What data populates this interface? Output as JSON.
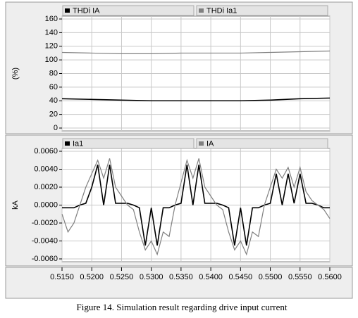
{
  "chart_data": [
    {
      "type": "line",
      "y_label": "(%)",
      "x": [
        0.515,
        0.52,
        0.525,
        0.53,
        0.535,
        0.54,
        0.545,
        0.55,
        0.555,
        0.56
      ],
      "series": [
        {
          "name": "THDi IA",
          "color": "#000000",
          "values": [
            43,
            42,
            41,
            40,
            40,
            40,
            40,
            41,
            43,
            44
          ]
        },
        {
          "name": "THDi Ia1",
          "color": "#808080",
          "values": [
            111,
            110,
            109,
            109,
            110,
            110,
            110,
            111,
            112,
            113
          ]
        }
      ],
      "ylim": [
        0,
        160
      ],
      "yticks": [
        0,
        20,
        40,
        60,
        80,
        100,
        120,
        140,
        160
      ],
      "grid": true
    },
    {
      "type": "line",
      "y_label": "kA",
      "x": [
        0.515,
        0.516,
        0.517,
        0.518,
        0.519,
        0.52,
        0.521,
        0.522,
        0.523,
        0.524,
        0.525,
        0.526,
        0.527,
        0.528,
        0.529,
        0.53,
        0.531,
        0.532,
        0.533,
        0.534,
        0.535,
        0.536,
        0.537,
        0.538,
        0.539,
        0.54,
        0.541,
        0.542,
        0.543,
        0.544,
        0.545,
        0.546,
        0.547,
        0.548,
        0.549,
        0.55,
        0.551,
        0.552,
        0.553,
        0.554,
        0.555,
        0.556,
        0.557,
        0.558,
        0.559,
        0.56
      ],
      "series": [
        {
          "name": "Ia1",
          "color": "#000000",
          "values": [
            -0.0003,
            -0.0003,
            -0.0003,
            0,
            0.0002,
            0.002,
            0.0045,
            0,
            0.0045,
            0.0002,
            0.0002,
            0.0002,
            0,
            -0.0003,
            -0.0045,
            -0.0003,
            -0.0045,
            -0.0003,
            -0.0003,
            0,
            0.0002,
            0.0045,
            0,
            0.0045,
            0.0002,
            0.0002,
            0.0002,
            0,
            -0.0003,
            -0.0045,
            -0.0003,
            -0.0045,
            -0.0003,
            -0.0003,
            0,
            0.0002,
            0.0035,
            0,
            0.0035,
            0.0002,
            0.0035,
            0.0002,
            0.0002,
            0,
            -0.0003,
            -0.0003
          ]
        },
        {
          "name": "IA",
          "color": "#808080",
          "values": [
            -0.001,
            -0.003,
            -0.002,
            0,
            0.002,
            0.0035,
            0.005,
            0.003,
            0.0052,
            0.002,
            0.001,
            0,
            -0.0005,
            -0.003,
            -0.005,
            -0.004,
            -0.0055,
            -0.003,
            -0.0035,
            0,
            0.0025,
            0.005,
            0.003,
            0.0052,
            0.002,
            0.001,
            0,
            -0.0005,
            -0.003,
            -0.005,
            -0.004,
            -0.0055,
            -0.003,
            -0.0035,
            0,
            0.002,
            0.004,
            0.003,
            0.0042,
            0.002,
            0.0042,
            0.0015,
            0.0005,
            0,
            -0.0005,
            -0.0015
          ]
        }
      ],
      "ylim": [
        -0.006,
        0.006
      ],
      "yticks": [
        {
          "value": -0.006,
          "label": "-0.0060"
        },
        {
          "value": -0.004,
          "label": "-0.0040"
        },
        {
          "value": -0.002,
          "label": "-0.0020"
        },
        {
          "value": 0,
          "label": "0.0000"
        },
        {
          "value": 0.002,
          "label": "0.0020"
        },
        {
          "value": 0.004,
          "label": "0.0040"
        },
        {
          "value": 0.006,
          "label": "0.0060"
        }
      ],
      "xlim": [
        0.515,
        0.56
      ],
      "xticks": [
        {
          "value": 0.515,
          "label": "0.5150"
        },
        {
          "value": 0.52,
          "label": "0.5200"
        },
        {
          "value": 0.525,
          "label": "0.5250"
        },
        {
          "value": 0.53,
          "label": "0.5300"
        },
        {
          "value": 0.535,
          "label": "0.5350"
        },
        {
          "value": 0.54,
          "label": "0.5400"
        },
        {
          "value": 0.545,
          "label": "0.5450"
        },
        {
          "value": 0.55,
          "label": "0.5500"
        },
        {
          "value": 0.555,
          "label": "0.5550"
        },
        {
          "value": 0.56,
          "label": "0.5600"
        }
      ],
      "grid": true
    }
  ],
  "figure_caption": "Figure 14. Simulation result regarding drive input current"
}
